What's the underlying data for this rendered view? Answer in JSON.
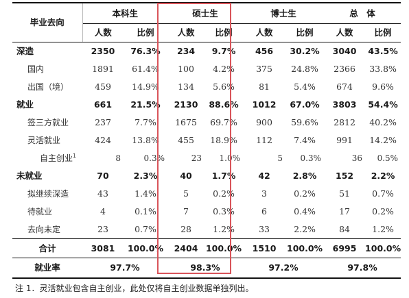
{
  "header": {
    "destination": "毕业去向",
    "groups": [
      "本科生",
      "硕士生",
      "博士生",
      "总　体"
    ],
    "count": "人数",
    "ratio": "比例"
  },
  "rows": [
    {
      "label": "深造",
      "values": [
        "2350",
        "76.3%",
        "234",
        "9.7%",
        "456",
        "30.2%",
        "3040",
        "43.5%"
      ]
    },
    {
      "label": "国内",
      "values": [
        "1891",
        "61.4%",
        "100",
        "4.2%",
        "375",
        "24.8%",
        "2366",
        "33.8%"
      ]
    },
    {
      "label": "出国（境）",
      "values": [
        "459",
        "14.9%",
        "134",
        "5.6%",
        "81",
        "5.4%",
        "674",
        "9.6%"
      ]
    },
    {
      "label": "就业",
      "values": [
        "661",
        "21.5%",
        "2130",
        "88.6%",
        "1012",
        "67.0%",
        "3803",
        "54.4%"
      ]
    },
    {
      "label": "签三方就业",
      "values": [
        "237",
        "7.7%",
        "1675",
        "69.7%",
        "900",
        "59.6%",
        "2812",
        "40.2%"
      ]
    },
    {
      "label": "灵活就业",
      "values": [
        "424",
        "13.8%",
        "455",
        "18.9%",
        "112",
        "7.4%",
        "991",
        "14.2%"
      ]
    },
    {
      "label": "自主创业",
      "sup": "1",
      "values": [
        "8",
        "0.3%",
        "23",
        "1.0%",
        "5",
        "0.3%",
        "36",
        "0.5%"
      ]
    },
    {
      "label": "未就业",
      "values": [
        "70",
        "2.3%",
        "40",
        "1.7%",
        "42",
        "2.8%",
        "152",
        "2.2%"
      ]
    },
    {
      "label": "拟继续深造",
      "values": [
        "43",
        "1.4%",
        "5",
        "0.2%",
        "3",
        "0.2%",
        "51",
        "0.7%"
      ]
    },
    {
      "label": "待就业",
      "values": [
        "4",
        "0.1%",
        "7",
        "0.3%",
        "6",
        "0.4%",
        "17",
        "0.2%"
      ]
    },
    {
      "label": "去向未定",
      "values": [
        "23",
        "0.7%",
        "28",
        "1.2%",
        "33",
        "2.2%",
        "84",
        "1.2%"
      ]
    },
    {
      "label": "合计",
      "values": [
        "3081",
        "100.0%",
        "2404",
        "100.0%",
        "1510",
        "100.0%",
        "6995",
        "100.0%"
      ]
    }
  ],
  "employment_rate": {
    "label": "就业率",
    "values": [
      "97.7%",
      "98.3%",
      "97.2%",
      "97.8%"
    ]
  },
  "note": "注 1．灵活就业包含自主创业，此处仅将自主创业数据单独列出。",
  "highlight_color": "#d9545a"
}
